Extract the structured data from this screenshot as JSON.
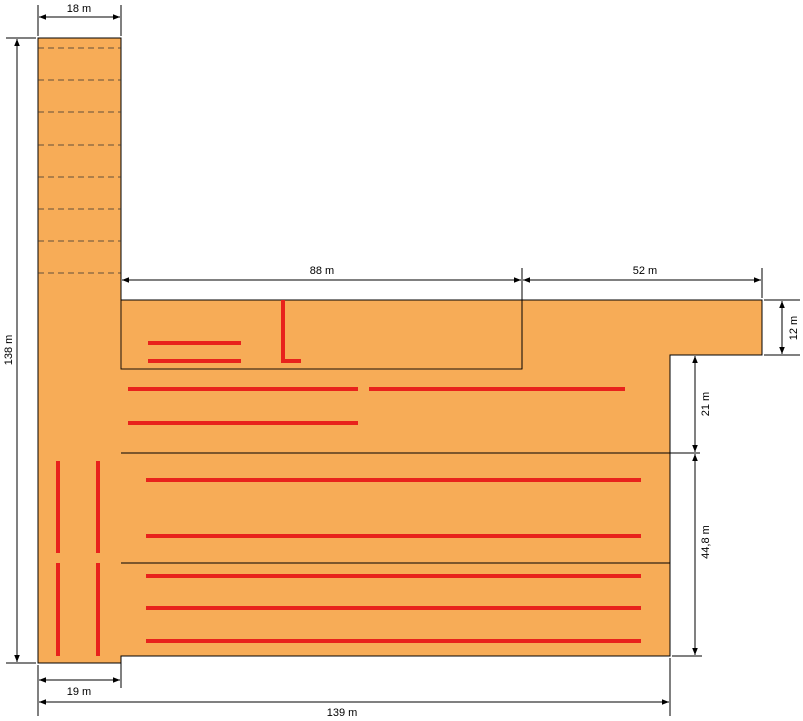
{
  "colors": {
    "area_fill": "#F7AC57",
    "stripe": "#E8221C",
    "line": "#000000"
  },
  "dimensions": {
    "top_width": "18 m",
    "left_height": "138 m",
    "inner_width_left": "88 m",
    "inner_width_right": "52 m",
    "right_step_height": "12 m",
    "right_mid_height": "21 m",
    "right_lower_height": "44,8 m",
    "bottom_left_width": "19 m",
    "bottom_total_width": "139 m"
  }
}
